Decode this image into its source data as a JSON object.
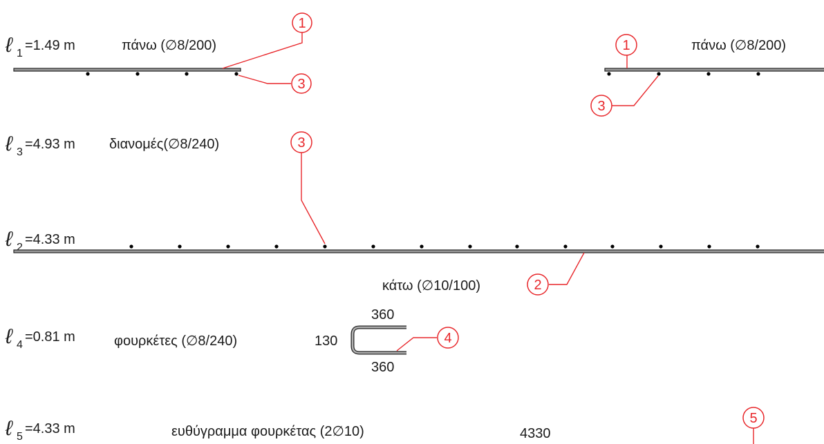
{
  "rows": {
    "l1": {
      "symbol": "ℓ",
      "sub": "1",
      "value": "=1.49 m",
      "desc_left": "πάνω (∅8/200)",
      "desc_right": "πάνω (∅8/200)"
    },
    "l3": {
      "symbol": "ℓ",
      "sub": "3",
      "value": "=4.93 m",
      "desc": "διανομές(∅8/240)"
    },
    "l2": {
      "symbol": "ℓ",
      "sub": "2",
      "value": "=4.33 m",
      "desc": "κάτω (∅10/100)"
    },
    "l4": {
      "symbol": "ℓ",
      "sub": "4",
      "value": "=0.81 m",
      "desc": "φουρκέτες (∅8/240)",
      "dim_top": "360",
      "dim_left": "130",
      "dim_bottom": "360"
    },
    "l5": {
      "symbol": "ℓ",
      "sub": "5",
      "value": "=4.33 m",
      "desc": "ευθύγραμμα φουρκέτας (2∅10)",
      "dim": "4330"
    }
  },
  "markers": {
    "m1a": "1",
    "m3a": "3",
    "m1b": "1",
    "m3b": "3",
    "m3c": "3",
    "m2": "2",
    "m4": "4",
    "m5": "5"
  },
  "colors": {
    "marker": "#e8262a",
    "bar_fill": "#9a9a9a",
    "ink": "#1a1a1a"
  }
}
